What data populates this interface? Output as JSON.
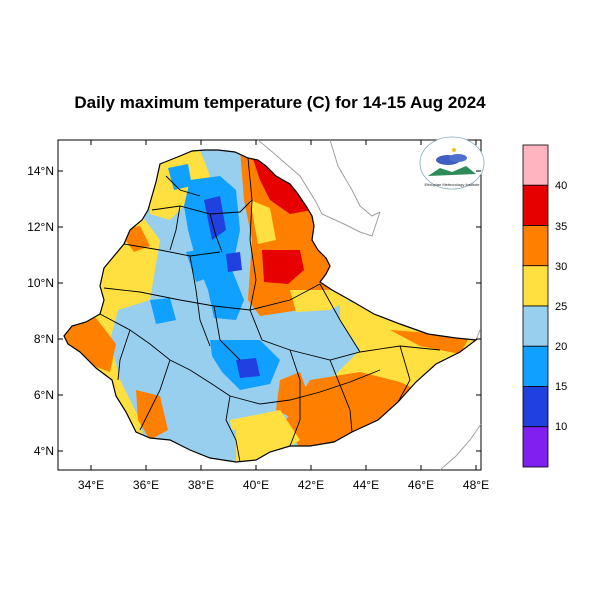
{
  "title": "Daily maximum temperature (C) for 14-15 Aug 2024",
  "lat_ticks": [
    "14°N",
    "12°N",
    "10°N",
    "8°N",
    "6°N",
    "4°N"
  ],
  "lon_ticks": [
    "34°E",
    "36°E",
    "38°E",
    "40°E",
    "42°E",
    "44°E",
    "46°E",
    "48°E"
  ],
  "legend": {
    "labels": [
      "40",
      "35",
      "30",
      "25",
      "20",
      "15",
      "10"
    ],
    "colors": [
      "#ffb4c0",
      "#e60000",
      "#ff8000",
      "#ffe040",
      "#98cfee",
      "#10a0ff",
      "#2040e0",
      "#8020f0"
    ]
  },
  "logo": {
    "name": "ethiopian-meteorology-institute-logo",
    "text": "Ethiopian Meteorology Institute"
  },
  "colors": {
    "map_frame": "#000000",
    "border": "#000000",
    "neighbor_border": "#a0a0a0"
  }
}
